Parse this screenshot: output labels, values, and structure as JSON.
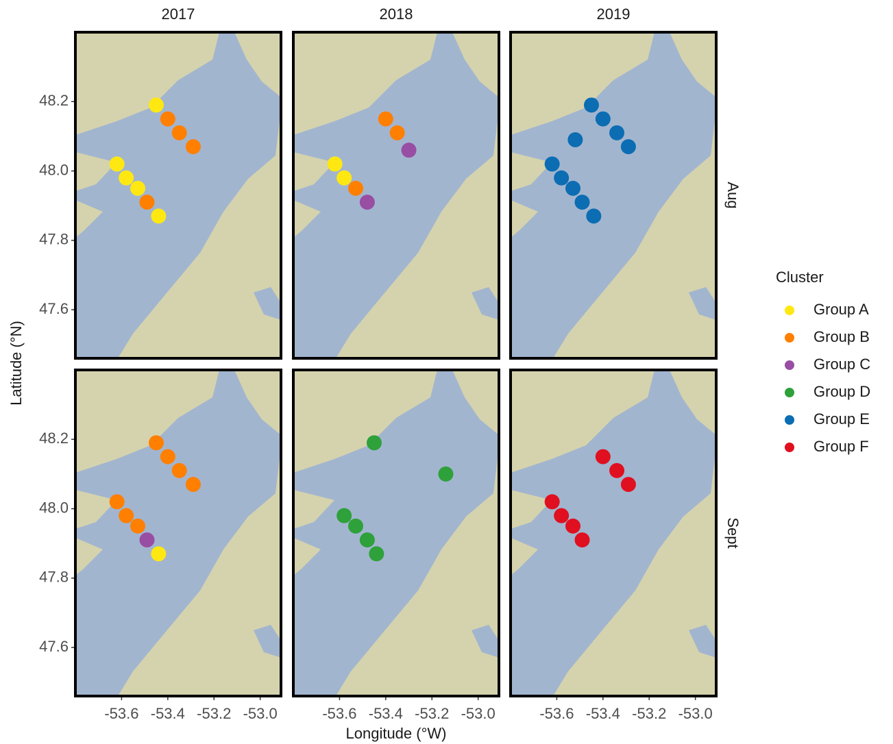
{
  "chart_data": {
    "type": "scatter",
    "x_label": "Longitude (°W)",
    "y_label": "Latitude (°N)",
    "legend_title": "Cluster",
    "columns": [
      "2017",
      "2018",
      "2019"
    ],
    "rows": [
      "Aug",
      "Sept"
    ],
    "legend": [
      {
        "name": "Group A",
        "color": "#ffe812"
      },
      {
        "name": "Group B",
        "color": "#ff7f00"
      },
      {
        "name": "Group C",
        "color": "#984ea3"
      },
      {
        "name": "Group D",
        "color": "#2ea13a"
      },
      {
        "name": "Group E",
        "color": "#0c6db3"
      },
      {
        "name": "Group F",
        "color": "#e01020"
      }
    ],
    "xlim": [
      -53.8,
      -52.91
    ],
    "ylim": [
      47.46,
      48.4
    ],
    "xticks": [
      -53.6,
      -53.4,
      -53.2,
      {
        "value": -53,
        "label": "-53.0"
      }
    ],
    "yticks": [
      47.6,
      47.8,
      {
        "value": 48,
        "label": "48.0"
      },
      48.2
    ],
    "panels": [
      [
        {
          "series": [
            {
              "name": "Group A",
              "x": [
                -53.45,
                -53.62,
                -53.58,
                -53.53,
                -53.44
              ],
              "y": [
                48.19,
                48.02,
                47.98,
                47.95,
                47.87
              ]
            },
            {
              "name": "Group B",
              "x": [
                -53.4,
                -53.35,
                -53.29,
                -53.49
              ],
              "y": [
                48.15,
                48.11,
                48.07,
                47.91
              ]
            }
          ]
        },
        {
          "series": [
            {
              "name": "Group A",
              "x": [
                -53.62,
                -53.58
              ],
              "y": [
                48.02,
                47.98
              ]
            },
            {
              "name": "Group B",
              "x": [
                -53.4,
                -53.35,
                -53.53
              ],
              "y": [
                48.15,
                48.11,
                47.95
              ]
            },
            {
              "name": "Group C",
              "x": [
                -53.3,
                -53.48
              ],
              "y": [
                48.06,
                47.91
              ]
            }
          ]
        },
        {
          "series": [
            {
              "name": "Group E",
              "x": [
                -53.45,
                -53.4,
                -53.34,
                -53.29,
                -53.52,
                -53.62,
                -53.58,
                -53.53,
                -53.49,
                -53.44
              ],
              "y": [
                48.19,
                48.15,
                48.11,
                48.07,
                48.09,
                48.02,
                47.98,
                47.95,
                47.91,
                47.87
              ]
            }
          ]
        }
      ],
      [
        {
          "series": [
            {
              "name": "Group A",
              "x": [
                -53.44
              ],
              "y": [
                47.87
              ]
            },
            {
              "name": "Group B",
              "x": [
                -53.45,
                -53.4,
                -53.35,
                -53.29,
                -53.62,
                -53.58,
                -53.53
              ],
              "y": [
                48.19,
                48.15,
                48.11,
                48.07,
                48.02,
                47.98,
                47.95
              ]
            },
            {
              "name": "Group C",
              "x": [
                -53.49
              ],
              "y": [
                47.91
              ]
            }
          ]
        },
        {
          "series": [
            {
              "name": "Group D",
              "x": [
                -53.45,
                -53.14,
                -53.58,
                -53.53,
                -53.48,
                -53.44
              ],
              "y": [
                48.19,
                48.1,
                47.98,
                47.95,
                47.91,
                47.87
              ]
            }
          ]
        },
        {
          "series": [
            {
              "name": "Group F",
              "x": [
                -53.4,
                -53.34,
                -53.29,
                -53.62,
                -53.58,
                -53.53,
                -53.49
              ],
              "y": [
                48.15,
                48.11,
                48.07,
                48.02,
                47.98,
                47.95,
                47.91
              ]
            }
          ]
        }
      ]
    ]
  }
}
